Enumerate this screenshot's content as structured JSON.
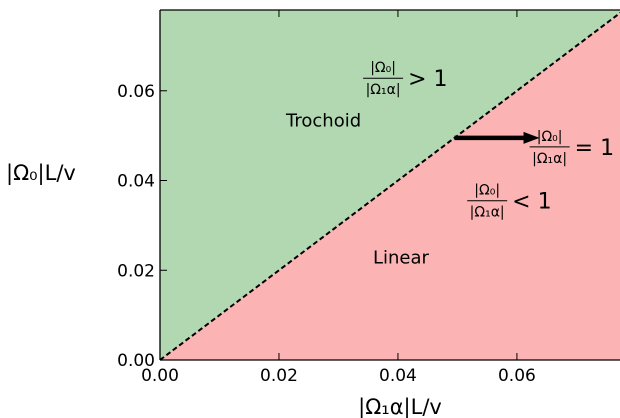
{
  "chart_data": {
    "type": "area",
    "xlabel": "|Ω₁α|L/v",
    "ylabel": "|Ω₀|L/v",
    "xlim": [
      0.0,
      0.078
    ],
    "ylim": [
      0.0,
      0.078
    ],
    "xticks": [
      "0.00",
      "0.02",
      "0.04",
      "0.06"
    ],
    "yticks": [
      "0.00",
      "0.02",
      "0.04",
      "0.06"
    ],
    "xtick_values": [
      0.0,
      0.02,
      0.04,
      0.06
    ],
    "ytick_values": [
      0.0,
      0.02,
      0.04,
      0.06
    ],
    "boundary_line": {
      "x": [
        0.0,
        0.078
      ],
      "y": [
        0.0,
        0.078
      ],
      "style": "dashed"
    },
    "regions": [
      {
        "name": "Trochoid",
        "color": "#b2d8b2",
        "side": "above"
      },
      {
        "name": "Linear",
        "color": "#fbb3b3",
        "side": "below"
      }
    ],
    "annotations": [
      {
        "id": "upper",
        "numerator": "|Ω₀|",
        "denominator": "|Ω₁α|",
        "relation": "> 1",
        "x": 0.0375,
        "y": 0.0628
      },
      {
        "id": "lower",
        "numerator": "|Ω₀|",
        "denominator": "|Ω₁α|",
        "relation": "< 1",
        "x": 0.055,
        "y": 0.0355
      },
      {
        "id": "equal",
        "numerator": "|Ω₀|",
        "denominator": "|Ω₁α|",
        "relation": "= 1",
        "x": 0.0655,
        "y": 0.0475
      }
    ],
    "arrow": {
      "from": [
        0.0495,
        0.0495
      ],
      "to": [
        0.0638,
        0.0495
      ]
    },
    "region_text": [
      {
        "label": "Trochoid",
        "x": 0.0275,
        "y": 0.052
      },
      {
        "label": "Linear",
        "x": 0.0405,
        "y": 0.0215
      }
    ]
  }
}
